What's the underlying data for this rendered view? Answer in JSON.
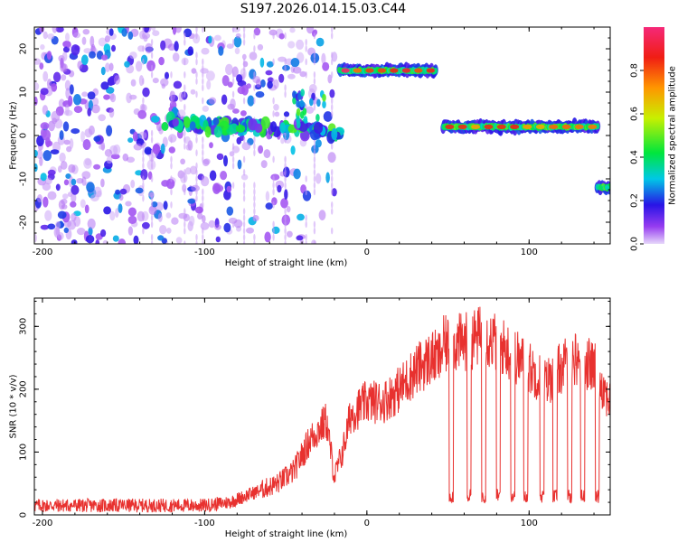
{
  "title": "S197.2026.014.15.03.C44",
  "colors": {
    "background": "#ffffff",
    "snr_line": "#e8312f",
    "axis": "#000000"
  },
  "chart_data": [
    {
      "type": "heatmap",
      "name": "spectrogram",
      "xlabel": "Height of straight line (km)",
      "ylabel": "Frequency (Hz)",
      "xlim": [
        -205,
        150
      ],
      "ylim": [
        -25,
        25
      ],
      "xticks": [
        -200,
        -100,
        0,
        100
      ],
      "yticks": [
        -20,
        -10,
        0,
        10,
        20
      ],
      "colorbar": {
        "label": "Normalized spectral amplitude",
        "range": [
          0,
          1
        ],
        "ticks": [
          "0.0",
          "0.2",
          "0.4",
          "0.6",
          "0.8"
        ],
        "tick_values": [
          0,
          0.2,
          0.4,
          0.6,
          0.8
        ]
      },
      "features": [
        {
          "label": "broadband noise",
          "x_range": [
            -205,
            -20
          ],
          "freq_range": [
            -25,
            25
          ],
          "peak_amplitude": 0.3
        },
        {
          "label": "descending track",
          "x_start": -125,
          "x_end": -15,
          "freq_start": 3,
          "freq_end": 1,
          "peak_amplitude": 0.5
        },
        {
          "label": "tone 15 Hz",
          "x_start": -17,
          "x_end": 43,
          "freq": 15,
          "peak_amplitude": 1.0
        },
        {
          "label": "tone 2 Hz",
          "x_start": 47,
          "x_end": 143,
          "freq": 2,
          "peak_amplitude": 0.9
        },
        {
          "label": "tone -12 Hz",
          "x_start": 142,
          "x_end": 150,
          "freq": -12,
          "peak_amplitude": 0.4
        }
      ]
    },
    {
      "type": "line",
      "name": "snr",
      "xlabel": "Height of straight line (km)",
      "ylabel": "SNR (10 * v/v)",
      "xlim": [
        -205,
        150
      ],
      "ylim": [
        0,
        345
      ],
      "xticks": [
        -200,
        -100,
        0,
        100
      ],
      "yticks": [
        0,
        100,
        200,
        300
      ],
      "series": [
        {
          "name": "SNR",
          "x": [
            -205,
            -180,
            -150,
            -120,
            -100,
            -85,
            -75,
            -65,
            -55,
            -45,
            -35,
            -25,
            -20,
            -15,
            -10,
            0,
            10,
            20,
            30,
            40,
            45,
            47,
            50,
            60,
            70,
            80,
            90,
            100,
            110,
            120,
            130,
            140,
            150
          ],
          "values": [
            15,
            15,
            15,
            15,
            15,
            20,
            30,
            40,
            50,
            70,
            120,
            150,
            60,
            100,
            160,
            180,
            180,
            200,
            230,
            250,
            250,
            270,
            270,
            275,
            285,
            275,
            255,
            235,
            210,
            235,
            250,
            235,
            180
          ],
          "dips": {
            "x": [
              52,
              63,
              72,
              81,
              90,
              98,
              108,
              116,
              125,
              133,
              142
            ],
            "value": 30
          }
        }
      ]
    }
  ]
}
